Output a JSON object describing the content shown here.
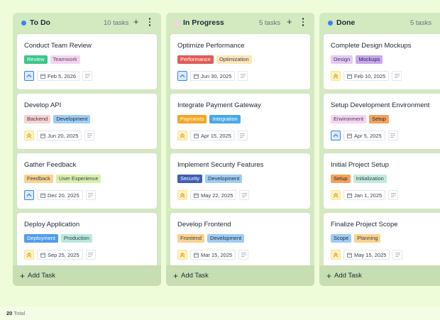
{
  "columns": [
    {
      "title": "To Do",
      "count": "10 tasks",
      "dot_color": "#3b82f6",
      "add_label": "+",
      "add_task_label": "Add Task",
      "cards": [
        {
          "title": "Conduct Team Review",
          "tags": [
            {
              "label": "Review",
              "bg": "#3cc68a",
              "fg": "#ffffff"
            },
            {
              "label": "Teamwork",
              "bg": "#f7d3f0",
              "fg": "#4b5563"
            }
          ],
          "priority": "low",
          "date": "Feb 5, 2026"
        },
        {
          "title": "Develop API",
          "tags": [
            {
              "label": "Backend",
              "bg": "#f9d0d0",
              "fg": "#374151"
            },
            {
              "label": "Development",
              "bg": "#9ecdf5",
              "fg": "#1f2937"
            }
          ],
          "priority": "high",
          "date": "Jun 20, 2025"
        },
        {
          "title": "Gather Feedback",
          "tags": [
            {
              "label": "Feedback",
              "bg": "#fbd38d",
              "fg": "#374151"
            },
            {
              "label": "User Experience",
              "bg": "#d9f0a8",
              "fg": "#374151"
            }
          ],
          "priority": "low",
          "date": "Dec 20, 2025"
        },
        {
          "title": "Deploy Application",
          "tags": [
            {
              "label": "Deployment",
              "bg": "#4d9ef0",
              "fg": "#ffffff"
            },
            {
              "label": "Production",
              "bg": "#b8e8dd",
              "fg": "#374151"
            }
          ],
          "priority": "high",
          "date": "Sep 25, 2025"
        }
      ]
    },
    {
      "title": "In Progress",
      "count": "5 tasks",
      "dot_color": "#fbcfe8",
      "add_label": "+",
      "add_task_label": "Add Task",
      "cards": [
        {
          "title": "Optimize Performance",
          "tags": [
            {
              "label": "Performance",
              "bg": "#e05c56",
              "fg": "#ffffff"
            },
            {
              "label": "Optimization",
              "bg": "#fde6b8",
              "fg": "#374151"
            }
          ],
          "priority": "low",
          "date": "Jun 30, 2025"
        },
        {
          "title": "Integrate Payment Gateway",
          "tags": [
            {
              "label": "Payments",
              "bg": "#f5a623",
              "fg": "#ffffff"
            },
            {
              "label": "Integration",
              "bg": "#4aa8e8",
              "fg": "#ffffff"
            }
          ],
          "priority": "high",
          "date": "Apr 15, 2025"
        },
        {
          "title": "Implement Security Features",
          "tags": [
            {
              "label": "Security",
              "bg": "#3f5fb5",
              "fg": "#ffffff"
            },
            {
              "label": "Development",
              "bg": "#9ecdf5",
              "fg": "#1f2937"
            }
          ],
          "priority": "high",
          "date": "May 22, 2025"
        },
        {
          "title": "Develop Frontend",
          "tags": [
            {
              "label": "Frontend",
              "bg": "#fbd38d",
              "fg": "#374151"
            },
            {
              "label": "Development",
              "bg": "#9ecdf5",
              "fg": "#1f2937"
            }
          ],
          "priority": "high",
          "date": "Mar 15, 2025"
        }
      ]
    },
    {
      "title": "Done",
      "count": "5 tasks",
      "dot_color": "#3b82f6",
      "add_label": "+",
      "add_task_label": "Add Task",
      "cards": [
        {
          "title": "Complete Design Mockups",
          "tags": [
            {
              "label": "Design",
              "bg": "#e6c8f5",
              "fg": "#374151"
            },
            {
              "label": "Mockups",
              "bg": "#c9a6ef",
              "fg": "#1f2937"
            }
          ],
          "priority": "high",
          "date": "Feb 10, 2025"
        },
        {
          "title": "Setup Development Environment",
          "tags": [
            {
              "label": "Environment",
              "bg": "#f7d3f0",
              "fg": "#374151"
            },
            {
              "label": "Setup",
              "bg": "#f5a25a",
              "fg": "#1f2937"
            }
          ],
          "priority": "low",
          "date": "Apr 5, 2025"
        },
        {
          "title": "Initial Project Setup",
          "tags": [
            {
              "label": "Setup",
              "bg": "#f5a25a",
              "fg": "#1f2937"
            },
            {
              "label": "Initialization",
              "bg": "#c2ecdc",
              "fg": "#374151"
            }
          ],
          "priority": "high",
          "date": "Jan 1, 2025"
        },
        {
          "title": "Finalize Project Scope",
          "tags": [
            {
              "label": "Scope",
              "bg": "#9ecdf5",
              "fg": "#1f2937"
            },
            {
              "label": "Planning",
              "bg": "#fbd38d",
              "fg": "#374151"
            }
          ],
          "priority": "high",
          "date": "May 15, 2025"
        }
      ]
    }
  ],
  "priority_colors": {
    "low": {
      "bg": "#dbeafe",
      "border": "#3b82f6",
      "icon": "#3b82f6"
    },
    "high": {
      "bg": "#fef3c7",
      "border": "#fde68a",
      "icon": "#d9a21b"
    }
  },
  "icons": {
    "priority_low": "chevron-up-icon",
    "priority_high": "double-chevron-up-icon",
    "date": "calendar-icon",
    "notes": "lines-icon",
    "more": "vertical-dots-icon"
  },
  "footer": {
    "total_count": "20",
    "total_label": "Total"
  }
}
